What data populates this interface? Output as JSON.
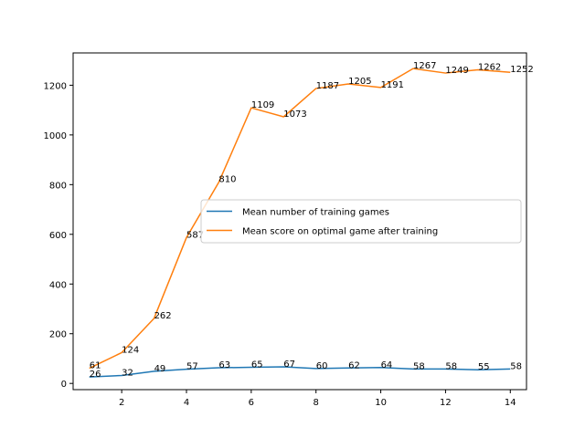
{
  "chart_data": {
    "type": "line",
    "title": "",
    "xlabel": "",
    "ylabel": "",
    "xlim": [
      0.5,
      14.5
    ],
    "ylim": [
      -25,
      1330
    ],
    "xticks": [
      2,
      4,
      6,
      8,
      10,
      12,
      14
    ],
    "yticks": [
      0,
      200,
      400,
      600,
      800,
      1000,
      1200
    ],
    "grid": false,
    "legend_position": "center-right",
    "x": [
      1,
      2,
      3,
      4,
      5,
      6,
      7,
      8,
      9,
      10,
      11,
      12,
      13,
      14
    ],
    "series": [
      {
        "name": "Mean number of training games",
        "color": "#1f77b4",
        "values": [
          26,
          32,
          49,
          57,
          63,
          65,
          67,
          60,
          62,
          64,
          58,
          58,
          55,
          58
        ]
      },
      {
        "name": "Mean score on optimal game after training",
        "color": "#ff7f0e",
        "values": [
          61,
          124,
          262,
          587,
          810,
          1109,
          1073,
          1187,
          1205,
          1191,
          1267,
          1249,
          1262,
          1252
        ]
      }
    ]
  }
}
